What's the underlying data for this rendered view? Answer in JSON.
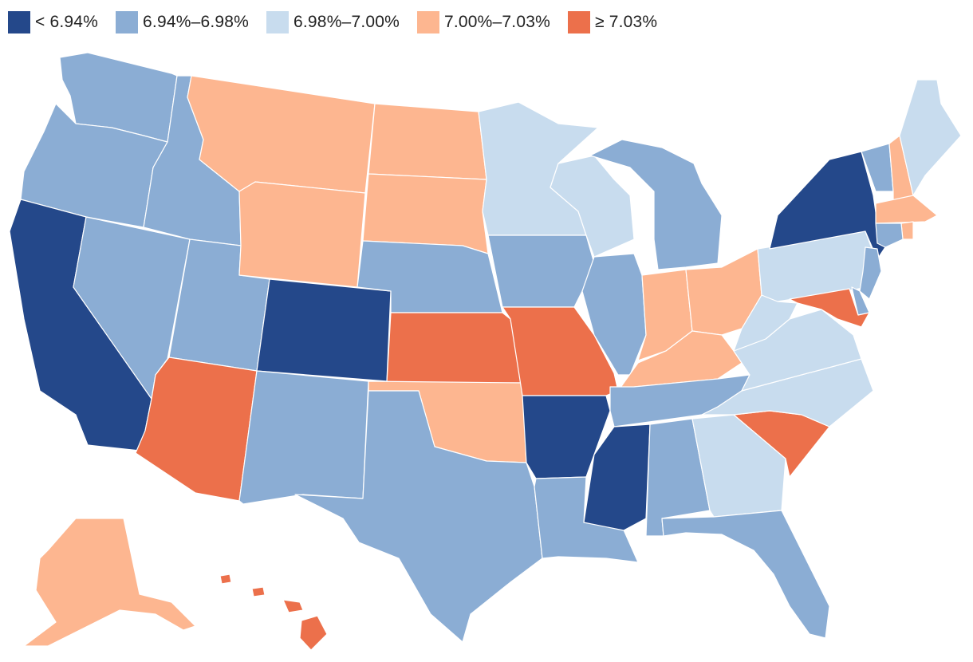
{
  "colors": {
    "b1": "#24488a",
    "b2": "#8badd4",
    "b3": "#c8dcee",
    "b4": "#fdb690",
    "b5": "#ec704b"
  },
  "legend": [
    {
      "label": "< 6.94%",
      "bin": "b1"
    },
    {
      "label": "6.94%–6.98%",
      "bin": "b2"
    },
    {
      "label": "6.98%–7.00%",
      "bin": "b3"
    },
    {
      "label": "7.00%–7.03%",
      "bin": "b4"
    },
    {
      "label": "≥ 7.03%",
      "bin": "b5"
    }
  ],
  "states": {
    "WA": "b2",
    "OR": "b2",
    "CA": "b1",
    "ID": "b2",
    "NV": "b2",
    "UT": "b2",
    "AZ": "b5",
    "MT": "b4",
    "WY": "b4",
    "CO": "b1",
    "NM": "b2",
    "ND": "b4",
    "SD": "b4",
    "NE": "b2",
    "KS": "b5",
    "OK": "b4",
    "TX": "b2",
    "MN": "b3",
    "IA": "b2",
    "MO": "b5",
    "AR": "b1",
    "LA": "b2",
    "WI": "b3",
    "IL": "b2",
    "MI": "b2",
    "IN": "b4",
    "OH": "b4",
    "KY": "b4",
    "TN": "b2",
    "MS": "b1",
    "AL": "b2",
    "GA": "b3",
    "FL": "b2",
    "SC": "b5",
    "NC": "b3",
    "VA": "b3",
    "WV": "b3",
    "PA": "b3",
    "NY": "b1",
    "VT": "b2",
    "NH": "b4",
    "ME": "b3",
    "MA": "b4",
    "RI": "b4",
    "CT": "b2",
    "NJ": "b2",
    "DE": "b2",
    "MD": "b5",
    "AK": "b4",
    "HI": "b5"
  }
}
